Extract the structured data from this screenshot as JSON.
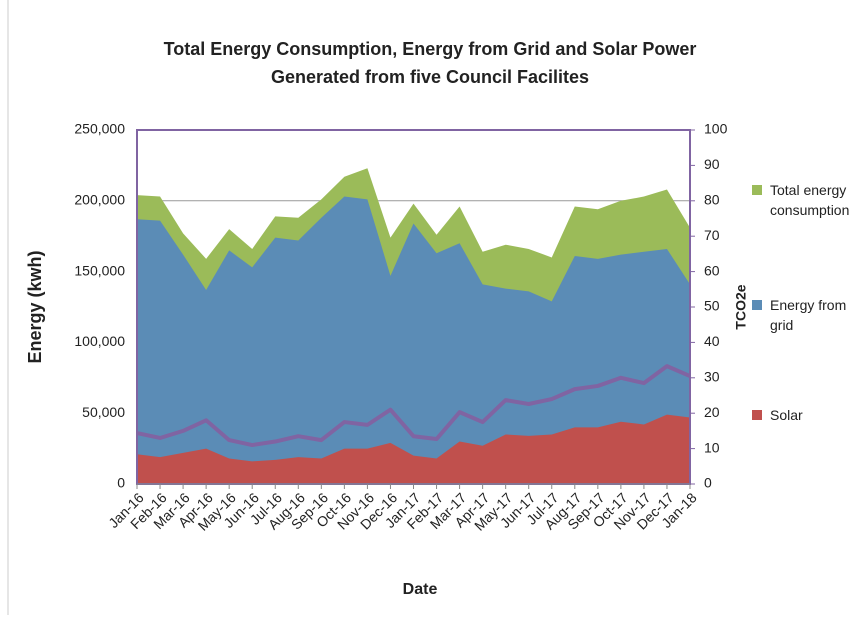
{
  "chart_data": {
    "type": "area",
    "title": [
      "Total Energy Consumption, Energy from Grid and Solar Power",
      "Generated from five Council Facilites"
    ],
    "x_label": "Date",
    "y_label": "Energy (kwh)",
    "y2_label": "TCO2e",
    "categories": [
      "Jan-16",
      "Feb-16",
      "Mar-16",
      "Apr-16",
      "May-16",
      "Jun-16",
      "Jul-16",
      "Aug-16",
      "Sep-16",
      "Oct-16",
      "Nov-16",
      "Dec-16",
      "Jan-17",
      "Feb-17",
      "Mar-17",
      "Apr-17",
      "May-17",
      "Jun-17",
      "Jul-17",
      "Aug-17",
      "Sep-17",
      "Oct-17",
      "Nov-17",
      "Dec-17",
      "Jan-18"
    ],
    "series": [
      {
        "name": "Total energy consumption",
        "color": "#9bbb59",
        "values": [
          204000,
          203000,
          177000,
          159000,
          180000,
          166000,
          189000,
          188000,
          201000,
          217000,
          223000,
          174000,
          198000,
          176000,
          196000,
          164000,
          169000,
          166000,
          160000,
          196000,
          194000,
          200000,
          203000,
          208000,
          181000
        ]
      },
      {
        "name": "Energy from grid",
        "color": "#5b8cb6",
        "values": [
          187000,
          186000,
          162000,
          137000,
          165000,
          153000,
          174000,
          172000,
          188000,
          203000,
          201000,
          147000,
          184000,
          163000,
          170000,
          141000,
          138000,
          136000,
          129000,
          161000,
          159000,
          162000,
          164000,
          166000,
          141000
        ]
      },
      {
        "name": "Solar",
        "color": "#c0504d",
        "values": [
          21000,
          19000,
          22000,
          25000,
          18000,
          16000,
          17000,
          19000,
          18000,
          25000,
          25000,
          29000,
          20000,
          18000,
          30000,
          27000,
          35000,
          34000,
          35000,
          40000,
          40000,
          44000,
          42000,
          49000,
          47000
        ]
      },
      {
        "type": "line",
        "axis": "y2",
        "color": "#8064a2",
        "values": [
          14.4,
          13,
          15,
          18,
          12.4,
          11,
          12,
          13.5,
          12.4,
          17.5,
          16.7,
          21,
          13.5,
          12.7,
          20.3,
          17.5,
          23.7,
          22.6,
          24,
          26.8,
          27.7,
          30,
          28.5,
          33.3,
          30.5
        ]
      }
    ],
    "ylim": [
      0,
      250000
    ],
    "yticks": [
      {
        "value": 0,
        "label": "0"
      },
      {
        "value": 50000,
        "label": "50,000"
      },
      {
        "value": 100000,
        "label": "100,000"
      },
      {
        "value": 150000,
        "label": "150,000"
      },
      {
        "value": 200000,
        "label": "200,000"
      },
      {
        "value": 250000,
        "label": "250,000"
      }
    ],
    "y2lim": [
      0,
      100
    ],
    "y2ticks": [
      0,
      10,
      20,
      30,
      40,
      50,
      60,
      70,
      80,
      90,
      100
    ],
    "grid": true,
    "legend": "right"
  }
}
